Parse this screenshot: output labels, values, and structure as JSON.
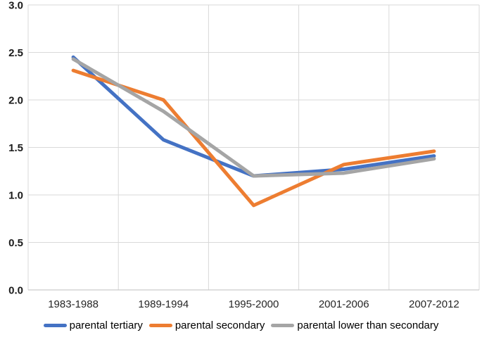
{
  "chart_data": {
    "type": "line",
    "title": "",
    "xlabel": "",
    "ylabel": "",
    "categories": [
      "1983-1988",
      "1989-1994",
      "1995-2000",
      "2001-2006",
      "2007-2012"
    ],
    "series": [
      {
        "name": "parental tertiary",
        "color": "#4472C4",
        "values": [
          2.45,
          1.58,
          1.2,
          1.27,
          1.41
        ]
      },
      {
        "name": "parental secondary",
        "color": "#ED7D31",
        "values": [
          2.31,
          2.0,
          0.89,
          1.32,
          1.46
        ]
      },
      {
        "name": "parental lower than secondary",
        "color": "#A5A5A5",
        "values": [
          2.43,
          1.88,
          1.2,
          1.23,
          1.38
        ]
      }
    ],
    "ylim": [
      0.0,
      3.0
    ],
    "ytick_step": 0.5,
    "ytick_labels": [
      "0.0",
      "0.5",
      "1.0",
      "1.5",
      "2.0",
      "2.5",
      "3.0"
    ],
    "grid": true,
    "legend_position": "bottom",
    "style": {
      "gridline_color": "#D9D9D9",
      "axis_line_color": "#BFBFBF",
      "ytick_color": "#1a1a1a",
      "xtick_color": "#262626",
      "legend_text_color": "#000000",
      "line_width": 5
    }
  }
}
